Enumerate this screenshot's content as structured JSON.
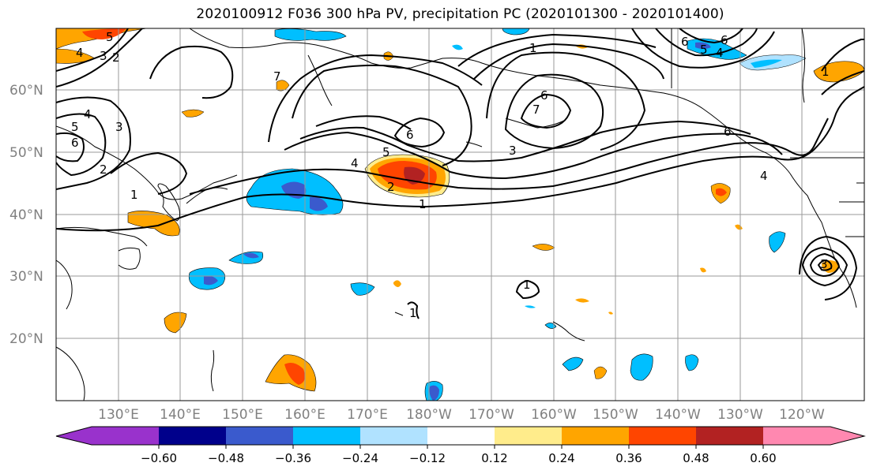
{
  "title": "2020100912 F036 300 hPa PV, precipitation PC (2020101300 - 2020101400)",
  "map": {
    "lat_labels": [
      {
        "text": "60°N",
        "lat": 60
      },
      {
        "text": "50°N",
        "lat": 50
      },
      {
        "text": "40°N",
        "lat": 40
      },
      {
        "text": "30°N",
        "lat": 30
      },
      {
        "text": "20°N",
        "lat": 20
      }
    ],
    "lon_labels": [
      {
        "text": "130°E",
        "lon": 130
      },
      {
        "text": "140°E",
        "lon": 140
      },
      {
        "text": "150°E",
        "lon": 150
      },
      {
        "text": "160°E",
        "lon": 160
      },
      {
        "text": "170°E",
        "lon": 170
      },
      {
        "text": "180°W",
        "lon": 180
      },
      {
        "text": "170°W",
        "lon": 190
      },
      {
        "text": "160°W",
        "lon": 200
      },
      {
        "text": "150°W",
        "lon": 210
      },
      {
        "text": "140°W",
        "lon": 220
      },
      {
        "text": "130°W",
        "lon": 230
      },
      {
        "text": "120°W",
        "lon": 240
      }
    ],
    "extent": {
      "lon_min": 120,
      "lon_max": 250,
      "lat_min": 10,
      "lat_max": 70
    },
    "contour_labels": [
      "1",
      "2",
      "3",
      "4",
      "5",
      "6",
      "7"
    ]
  },
  "colorbar": {
    "tick_labels": [
      "−0.60",
      "−0.48",
      "−0.36",
      "−0.24",
      "−0.12",
      "0.12",
      "0.24",
      "0.36",
      "0.48",
      "0.60"
    ],
    "colors": [
      "#9932cc",
      "#00008b",
      "#3a5acd",
      "#00bfff",
      "#b0e2ff",
      "#ffffff",
      "#ffec8b",
      "#ffa500",
      "#ff4500",
      "#b22222",
      "#ff88b0"
    ]
  }
}
